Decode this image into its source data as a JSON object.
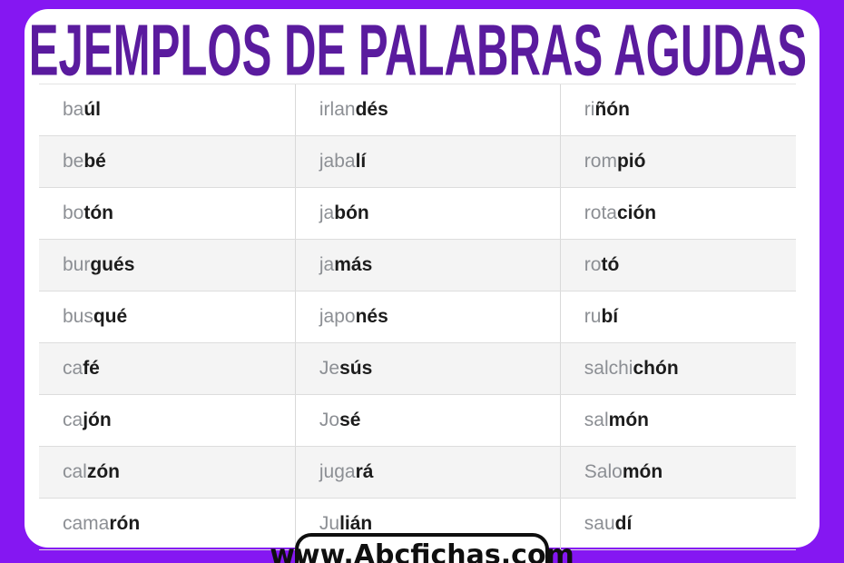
{
  "title": "EJEMPLOS DE PALABRAS AGUDAS",
  "watermark": "www.Abcfichas.com",
  "colors": {
    "frame_purple": "#8517F2",
    "title_purple": "#5A1B9E",
    "stripe_gray": "#F4F4F4",
    "prefix_gray": "#8C8F94",
    "stress_dark": "#1C1C1C"
  },
  "table": {
    "rows": [
      [
        {
          "pre": "ba",
          "stress": "úl"
        },
        {
          "pre": "irlan",
          "stress": "dés"
        },
        {
          "pre": "ri",
          "stress": "ñón"
        }
      ],
      [
        {
          "pre": "be",
          "stress": "bé"
        },
        {
          "pre": "jaba",
          "stress": "lí"
        },
        {
          "pre": "rom",
          "stress": "pió"
        }
      ],
      [
        {
          "pre": "bo",
          "stress": "tón"
        },
        {
          "pre": "ja",
          "stress": "bón"
        },
        {
          "pre": "rota",
          "stress": "ción"
        }
      ],
      [
        {
          "pre": "bur",
          "stress": "gués"
        },
        {
          "pre": "ja",
          "stress": "más"
        },
        {
          "pre": "ro",
          "stress": "tó"
        }
      ],
      [
        {
          "pre": "bus",
          "stress": "qué"
        },
        {
          "pre": "japo",
          "stress": "nés"
        },
        {
          "pre": "ru",
          "stress": "bí"
        }
      ],
      [
        {
          "pre": "ca",
          "stress": "fé"
        },
        {
          "pre": "Je",
          "stress": "sús"
        },
        {
          "pre": "salchi",
          "stress": "chón"
        }
      ],
      [
        {
          "pre": "ca",
          "stress": "jón"
        },
        {
          "pre": "Jo",
          "stress": "sé"
        },
        {
          "pre": "sal",
          "stress": "món"
        }
      ],
      [
        {
          "pre": "cal",
          "stress": "zón"
        },
        {
          "pre": "juga",
          "stress": "rá"
        },
        {
          "pre": "Salo",
          "stress": "món"
        }
      ],
      [
        {
          "pre": "cama",
          "stress": "rón"
        },
        {
          "pre": "Ju",
          "stress": "lián"
        },
        {
          "pre": "sau",
          "stress": "dí"
        }
      ]
    ]
  }
}
